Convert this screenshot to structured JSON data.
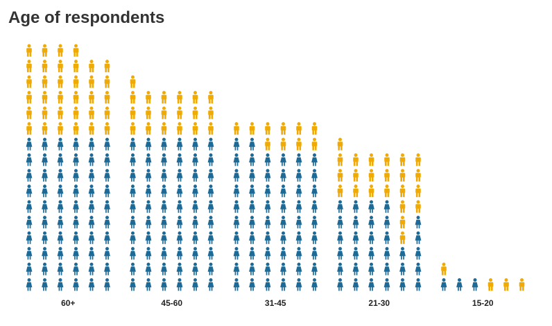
{
  "chart_data": {
    "type": "pictogram",
    "title": "Age of respondents",
    "categories": [
      "60+",
      "45-60",
      "31-45",
      "21-30",
      "15-20"
    ],
    "series": [
      {
        "key": "female",
        "icon": "female-person-icon",
        "color": "#1d6a96",
        "columns": [
          [
            10,
            10,
            10,
            10,
            10,
            10
          ],
          [
            10,
            10,
            10,
            10,
            10,
            10
          ],
          [
            10,
            10,
            9,
            9,
            9,
            9
          ],
          [
            6,
            6,
            6,
            6,
            3,
            5
          ],
          [
            1,
            1,
            1,
            0,
            0,
            0
          ]
        ]
      },
      {
        "key": "male",
        "icon": "male-person-icon",
        "color": "#f0aa05",
        "columns": [
          [
            6,
            6,
            6,
            6,
            5,
            5
          ],
          [
            4,
            3,
            3,
            3,
            3,
            3
          ],
          [
            1,
            1,
            2,
            2,
            2,
            2
          ],
          [
            4,
            3,
            3,
            3,
            6,
            4
          ],
          [
            1,
            0,
            0,
            1,
            1,
            1
          ]
        ]
      }
    ]
  }
}
